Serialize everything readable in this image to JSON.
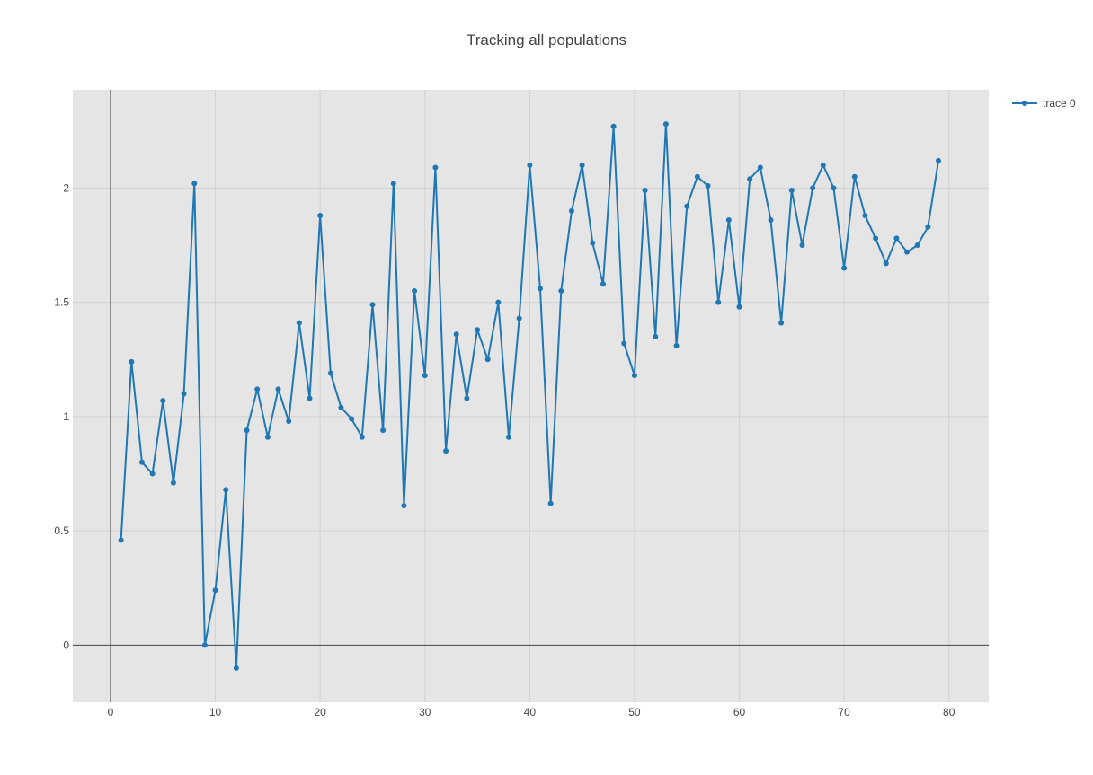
{
  "chart_data": {
    "type": "line",
    "title": "Tracking all populations",
    "xlabel": "",
    "ylabel": "",
    "xlim": [
      -3.6,
      83.8
    ],
    "ylim": [
      -0.25,
      2.43
    ],
    "x_ticks": [
      0,
      10,
      20,
      30,
      40,
      50,
      60,
      70,
      80
    ],
    "y_ticks": [
      0,
      0.5,
      1,
      1.5,
      2
    ],
    "grid": true,
    "legend_position": "top-right",
    "colors": {
      "line": "#1f77b4",
      "plot_bg": "#e5e5e5",
      "grid": "#d2d2d2",
      "zeroline": "#444444"
    },
    "series": [
      {
        "name": "trace 0",
        "mode": "lines+markers",
        "x": [
          1,
          2,
          3,
          4,
          5,
          6,
          7,
          8,
          9,
          10,
          11,
          12,
          13,
          14,
          15,
          16,
          17,
          18,
          19,
          20,
          21,
          22,
          23,
          24,
          25,
          26,
          27,
          28,
          29,
          30,
          31,
          32,
          33,
          34,
          35,
          36,
          37,
          38,
          39,
          40,
          41,
          42,
          43,
          44,
          45,
          46,
          47,
          48,
          49,
          50,
          51,
          52,
          53,
          54,
          55,
          56,
          57,
          58,
          59,
          60,
          61,
          62,
          63,
          64,
          65,
          66,
          67,
          68,
          69,
          70,
          71,
          72,
          73,
          74,
          75,
          76,
          77,
          78,
          79
        ],
        "y": [
          0.46,
          1.24,
          0.8,
          0.75,
          1.07,
          0.71,
          1.1,
          2.02,
          0,
          0.24,
          0.68,
          -0.1,
          0.94,
          1.12,
          0.91,
          1.12,
          0.98,
          1.41,
          1.08,
          1.88,
          1.19,
          1.04,
          0.99,
          0.91,
          1.49,
          0.94,
          2.02,
          0.61,
          1.55,
          1.18,
          2.09,
          0.85,
          1.36,
          1.08,
          1.38,
          1.25,
          1.5,
          0.91,
          1.43,
          2.1,
          1.56,
          0.62,
          1.55,
          1.9,
          2.1,
          1.76,
          1.58,
          2.27,
          1.32,
          1.18,
          1.99,
          1.35,
          2.28,
          1.31,
          1.92,
          2.05,
          2.01,
          1.5,
          1.86,
          1.48,
          2.04,
          2.09,
          1.86,
          1.41,
          1.99,
          1.75,
          2.0,
          2.1,
          2.0,
          1.65,
          2.05,
          1.88,
          1.78,
          1.67,
          1.78,
          1.72,
          1.75,
          1.83,
          2.12
        ]
      }
    ]
  }
}
